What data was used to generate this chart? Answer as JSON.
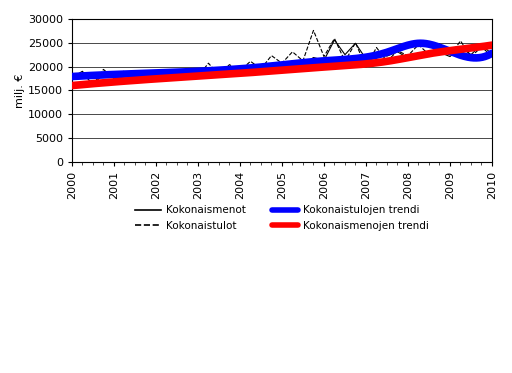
{
  "ylabel": "milj. €",
  "xlim": [
    2000,
    2010
  ],
  "ylim": [
    0,
    30000
  ],
  "yticks": [
    0,
    5000,
    10000,
    15000,
    20000,
    25000,
    30000
  ],
  "xticks": [
    2000,
    2001,
    2002,
    2003,
    2004,
    2005,
    2006,
    2007,
    2008,
    2009,
    2010
  ],
  "background_color": "#ffffff",
  "kokonaismenot": [
    17700,
    19000,
    16000,
    18600,
    18500,
    18900,
    16900,
    18700,
    18300,
    18700,
    18300,
    18700,
    18000,
    19100,
    18500,
    19100,
    18900,
    20100,
    19000,
    20200,
    19700,
    21200,
    20300,
    21900,
    21300,
    25600,
    22500,
    24900,
    21600,
    22800,
    22200,
    23100,
    21800,
    22900,
    22100,
    23000,
    22100,
    24100,
    22500,
    24600,
    22600,
    23100,
    22300,
    22600
  ],
  "kokonaistulot": [
    17500,
    18900,
    16100,
    19400,
    17500,
    19100,
    16600,
    18700,
    17700,
    18600,
    17600,
    19500,
    17900,
    20700,
    18200,
    20400,
    19100,
    21100,
    19500,
    22300,
    20700,
    23100,
    21200,
    27600,
    22100,
    25900,
    21100,
    25000,
    19900,
    24000,
    21100,
    23300,
    22300,
    24600,
    22500,
    24800,
    22300,
    25400,
    22100,
    24100,
    22200,
    22900,
    22000,
    22400
  ],
  "trendi_tulot_knots_x": [
    2000.0,
    2001.5,
    2003.0,
    2004.5,
    2006.0,
    2007.5,
    2008.3,
    2009.0,
    2010.0
  ],
  "trendi_tulot_knots_y": [
    17900,
    18500,
    19000,
    19900,
    21200,
    23000,
    24900,
    23200,
    22800
  ],
  "trendi_menot_knots_x": [
    2000.0,
    2001.5,
    2003.0,
    2004.5,
    2006.0,
    2007.5,
    2008.5,
    2009.5,
    2010.0
  ],
  "trendi_menot_knots_y": [
    16000,
    17100,
    18000,
    18900,
    19900,
    21100,
    22700,
    23900,
    24500
  ],
  "color_menot": "#000000",
  "color_tulot": "#000000",
  "color_trendi_tulot": "#0000ff",
  "color_trendi_menot": "#ff0000",
  "legend_labels": [
    "Kokonaismenot",
    "Kokonaistulot",
    "Kokonaistulojen trendi",
    "Kokonaismenojen trendi"
  ]
}
